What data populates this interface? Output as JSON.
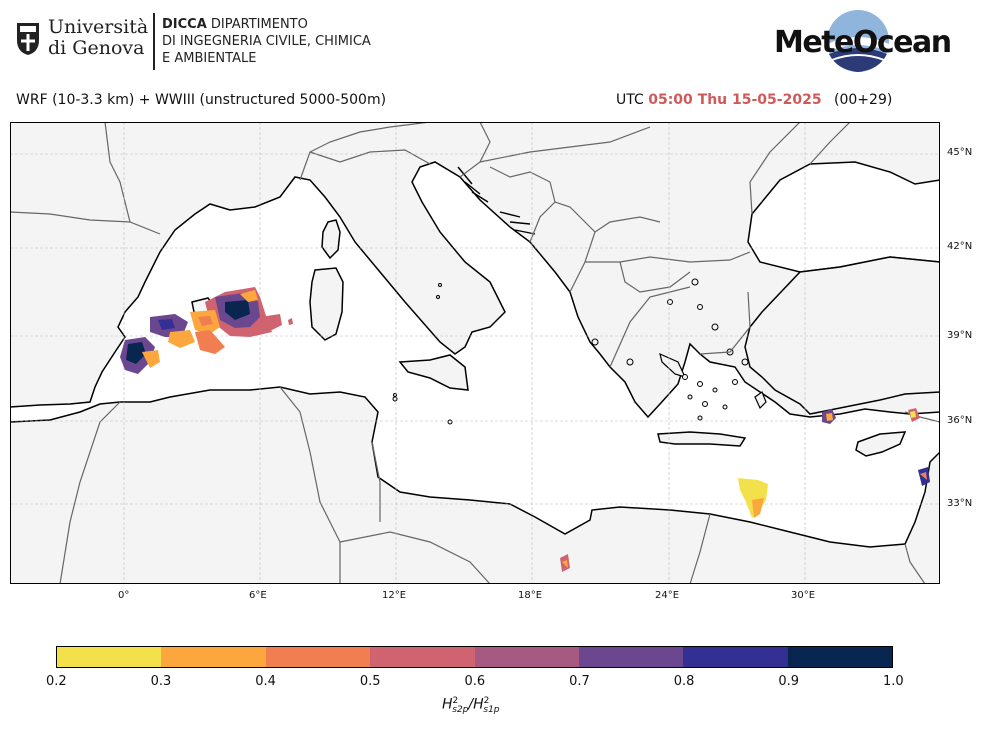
{
  "header": {
    "university_line1": "Università",
    "university_line2": "di Genova",
    "dept_bold": "DICCA",
    "dept_line1_rest": " DIPARTIMENTO",
    "dept_line2": "DI INGEGNERIA CIVILE, CHIMICA",
    "dept_line3": "E AMBIENTALE",
    "brand": "MeteOcean"
  },
  "map": {
    "model_text": "WRF (10-3.3 km) + WWIII (unstructured 5000-500m)",
    "utc_label": "UTC",
    "datetime": "05:00 Thu 15-05-2025",
    "forecast_step": "(00+29)",
    "lon_ticks": [
      "0°",
      "6°E",
      "12°E",
      "18°E",
      "24°E",
      "30°E"
    ],
    "lat_ticks": [
      "45°N",
      "42°N",
      "39°N",
      "36°N",
      "33°N"
    ],
    "colors": {
      "land": "#f4f4f4",
      "sea": "#ffffff",
      "coast": "#000000",
      "border": "#666666",
      "grid": "#bbbbbb"
    }
  },
  "colorbar": {
    "ticks": [
      "0.2",
      "0.3",
      "0.4",
      "0.5",
      "0.6",
      "0.7",
      "0.8",
      "0.9",
      "1.0"
    ],
    "colors": [
      "#f2e14a",
      "#fca73d",
      "#f07e50",
      "#cf6470",
      "#a65a82",
      "#6a478e",
      "#332f93",
      "#082650"
    ],
    "label_main": "H",
    "label_sup1": "2",
    "label_sub1": "s2p",
    "label_slash": "/H",
    "label_sup2": "2",
    "label_sub2": "s1p"
  }
}
